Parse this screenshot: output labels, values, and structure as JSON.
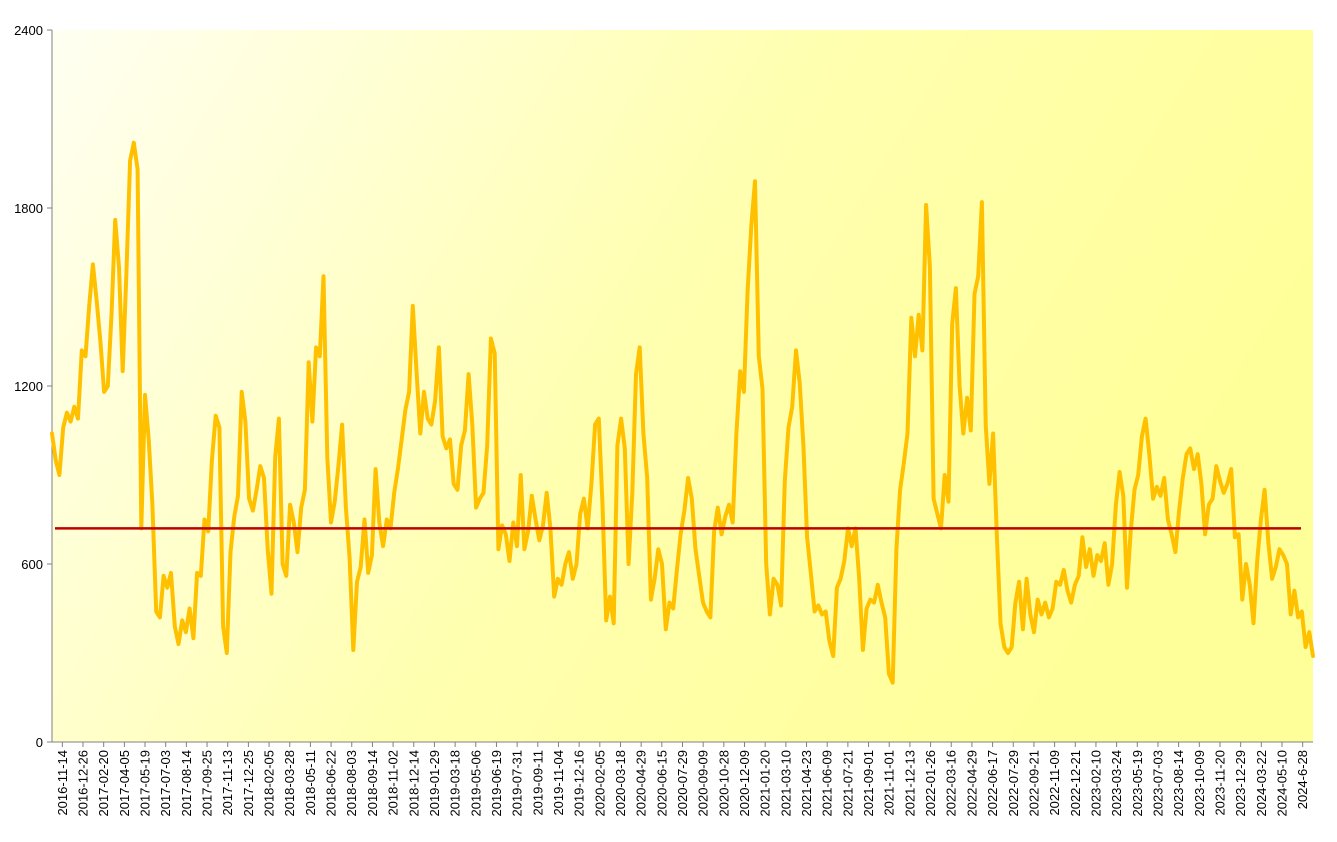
{
  "chart_data": {
    "type": "line",
    "title": "",
    "xlabel": "",
    "ylabel": "",
    "ylim": [
      0,
      2400
    ],
    "y_ticks": [
      "0",
      "600",
      "1200",
      "1800",
      "2400"
    ],
    "x_ticks": [
      "2016-11-14",
      "2016-12-26",
      "2017-02-20",
      "2017-04-05",
      "2017-05-19",
      "2017-07-03",
      "2017-08-14",
      "2017-09-25",
      "2017-11-13",
      "2017-12-25",
      "2018-02-05",
      "2018-03-28",
      "2018-05-11",
      "2018-06-22",
      "2018-08-03",
      "2018-09-14",
      "2018-11-02",
      "2018-12-14",
      "2019-01-29",
      "2019-03-18",
      "2019-05-06",
      "2019-06-19",
      "2019-07-31",
      "2019-09-11",
      "2019-11-04",
      "2019-12-16",
      "2020-02-05",
      "2020-03-18",
      "2020-04-29",
      "2020-06-15",
      "2020-07-29",
      "2020-09-09",
      "2020-10-28",
      "2020-12-09",
      "2021-01-20",
      "2021-03-10",
      "2021-04-23",
      "2021-06-09",
      "2021-07-21",
      "2021-09-01",
      "2021-11-01",
      "2021-12-13",
      "2022-01-26",
      "2022-03-16",
      "2022-04-29",
      "2022-06-17",
      "2022-07-29",
      "2022-09-21",
      "2022-11-09",
      "2022-12-21",
      "2023-02-10",
      "2023-03-24",
      "2023-05-19",
      "2023-07-03",
      "2023-08-14",
      "2023-10-09",
      "2023-11-20",
      "2023-12-29",
      "2024-03-22",
      "2024-05-10",
      "2024-6-28"
    ],
    "series": [
      {
        "role": "value",
        "color": "#ffc000",
        "values": [
          1040,
          950,
          900,
          1060,
          1110,
          1080,
          1130,
          1090,
          1320,
          1300,
          1470,
          1610,
          1490,
          1350,
          1180,
          1200,
          1440,
          1760,
          1600,
          1250,
          1580,
          1960,
          2020,
          1930,
          720,
          1170,
          1020,
          800,
          440,
          420,
          560,
          520,
          570,
          390,
          330,
          410,
          370,
          450,
          350,
          570,
          560,
          750,
          710,
          950,
          1100,
          1060,
          390,
          300,
          640,
          760,
          830,
          1180,
          1080,
          820,
          780,
          850,
          930,
          890,
          650,
          500,
          960,
          1090,
          600,
          560,
          800,
          740,
          640,
          790,
          850,
          1280,
          1080,
          1330,
          1300,
          1570,
          960,
          740,
          810,
          930,
          1070,
          790,
          620,
          310,
          540,
          590,
          750,
          570,
          630,
          920,
          740,
          660,
          750,
          720,
          840,
          920,
          1020,
          1120,
          1180,
          1470,
          1250,
          1040,
          1180,
          1090,
          1070,
          1150,
          1330,
          1030,
          990,
          1020,
          870,
          850,
          1000,
          1050,
          1240,
          1070,
          790,
          820,
          840,
          1000,
          1360,
          1310,
          650,
          730,
          700,
          610,
          740,
          660,
          900,
          650,
          710,
          830,
          750,
          680,
          730,
          840,
          720,
          490,
          550,
          530,
          600,
          640,
          550,
          600,
          770,
          820,
          720,
          870,
          1070,
          1090,
          800,
          410,
          490,
          400,
          1000,
          1090,
          990,
          600,
          840,
          1240,
          1330,
          1040,
          890,
          480,
          550,
          650,
          600,
          380,
          470,
          450,
          580,
          700,
          780,
          890,
          820,
          650,
          560,
          470,
          440,
          420,
          710,
          790,
          700,
          760,
          800,
          740,
          1040,
          1250,
          1180,
          1520,
          1740,
          1890,
          1300,
          1190,
          600,
          430,
          550,
          530,
          460,
          880,
          1060,
          1130,
          1320,
          1210,
          1000,
          690,
          570,
          440,
          460,
          430,
          440,
          340,
          290,
          520,
          550,
          610,
          720,
          660,
          720,
          550,
          310,
          450,
          480,
          470,
          530,
          470,
          420,
          230,
          200,
          650,
          850,
          940,
          1040,
          1430,
          1300,
          1440,
          1320,
          1810,
          1600,
          820,
          770,
          720,
          900,
          810,
          1410,
          1530,
          1200,
          1040,
          1160,
          1050,
          1510,
          1570,
          1820,
          1070,
          870,
          1040,
          700,
          400,
          320,
          300,
          320,
          470,
          540,
          380,
          550,
          430,
          370,
          480,
          430,
          470,
          420,
          450,
          540,
          530,
          580,
          510,
          470,
          530,
          560,
          690,
          590,
          650,
          560,
          630,
          610,
          670,
          530,
          600,
          800,
          910,
          830,
          520,
          710,
          850,
          900,
          1030,
          1090,
          970,
          820,
          860,
          830,
          890,
          750,
          700,
          640,
          780,
          890,
          970,
          990,
          920,
          970,
          870,
          700,
          800,
          820,
          930,
          880,
          840,
          870,
          920,
          690,
          700,
          480,
          600,
          530,
          400,
          610,
          750,
          850,
          670,
          550,
          590,
          650,
          630,
          600,
          430,
          510,
          420,
          440,
          320,
          370,
          290
        ]
      },
      {
        "role": "average",
        "color": "#c00000",
        "value": 720
      }
    ],
    "grid": false,
    "legend": "none",
    "background": [
      "#fffff0",
      "#ffff99"
    ]
  }
}
